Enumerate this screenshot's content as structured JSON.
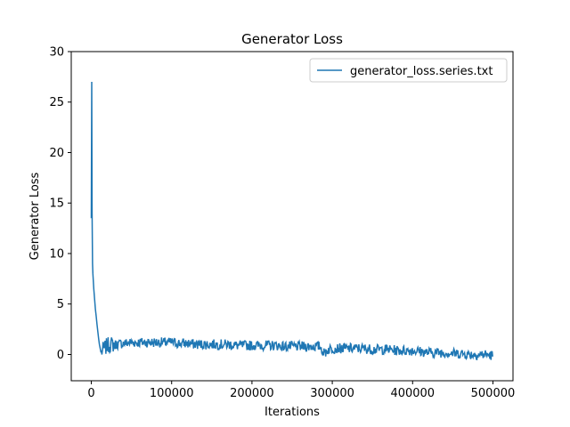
{
  "chart_data": {
    "type": "line",
    "title": "Generator Loss",
    "xlabel": "Iterations",
    "ylabel": "Generator Loss",
    "xlim": [
      -25000,
      525000
    ],
    "ylim": [
      -2.6,
      30
    ],
    "x_ticks": [
      0,
      100000,
      200000,
      300000,
      400000,
      500000
    ],
    "y_ticks": [
      0,
      5,
      10,
      15,
      20,
      25,
      30
    ],
    "legend": {
      "location": "top-right",
      "entries": [
        "generator_loss.series.txt"
      ]
    },
    "series": [
      {
        "name": "generator_loss.series.txt",
        "color": "#1f77b4",
        "x": [
          0,
          500,
          1000,
          1500,
          2000,
          3000,
          4000,
          5000,
          6000,
          7000,
          8000,
          9000,
          10000,
          12000,
          15000,
          20000,
          25000,
          30000,
          40000,
          50000,
          60000,
          70000,
          80000,
          90000,
          100000,
          110000,
          120000,
          130000,
          140000,
          150000,
          160000,
          170000,
          180000,
          190000,
          200000,
          210000,
          220000,
          230000,
          240000,
          250000,
          260000,
          270000,
          280000,
          285000,
          290000,
          295000,
          300000,
          310000,
          320000,
          330000,
          340000,
          350000,
          360000,
          370000,
          380000,
          390000,
          400000,
          410000,
          420000,
          430000,
          440000,
          450000,
          460000,
          470000,
          480000,
          490000,
          500000
        ],
        "values": [
          13.5,
          27.0,
          14.0,
          9.0,
          8.0,
          6.5,
          5.5,
          4.5,
          3.8,
          3.0,
          2.3,
          1.6,
          1.0,
          0.2,
          0.5,
          0.9,
          1.0,
          1.0,
          1.1,
          1.2,
          1.2,
          1.2,
          1.2,
          1.2,
          1.2,
          1.1,
          1.1,
          1.0,
          1.0,
          1.0,
          1.0,
          1.0,
          0.9,
          0.9,
          0.9,
          0.9,
          0.9,
          0.9,
          0.8,
          0.8,
          0.8,
          0.8,
          0.8,
          0.8,
          0.1,
          0.5,
          0.6,
          0.6,
          0.6,
          0.6,
          0.6,
          0.5,
          0.5,
          0.5,
          0.4,
          0.4,
          0.4,
          0.3,
          0.2,
          0.2,
          0.2,
          0.1,
          0.1,
          0.0,
          0.0,
          0.0,
          -0.1
        ],
        "noise_amplitude": 0.5
      }
    ]
  }
}
